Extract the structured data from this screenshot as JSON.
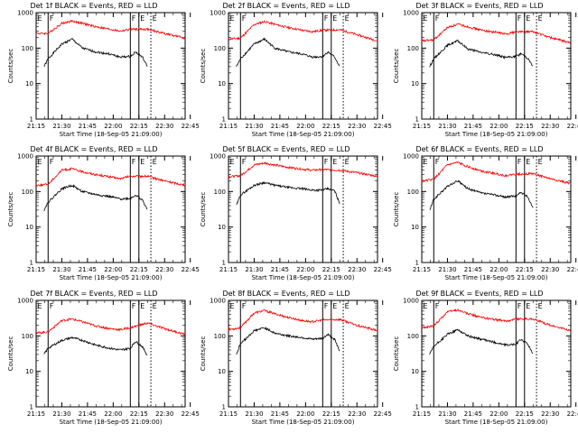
{
  "figure": {
    "panels": [
      {
        "title": "Det 1f BLACK = Events, RED = LLD"
      },
      {
        "title": "Det 2f BLACK = Events, RED = LLD"
      },
      {
        "title": "Det 3f BLACK = Events, RED = LLD"
      },
      {
        "title": "Det 4f BLACK = Events, RED = LLD"
      },
      {
        "title": "Det 5f BLACK = Events, RED = LLD"
      },
      {
        "title": "Det 6f BLACK = Events, RED = LLD"
      },
      {
        "title": "Det 7f BLACK = Events, RED = LLD"
      },
      {
        "title": "Det 8f BLACK = Events, RED = LLD"
      },
      {
        "title": "Det 9f BLACK = Events, RED = LLD"
      }
    ]
  },
  "chart_data": [
    {
      "type": "line",
      "title": "Det 1f BLACK = Events, RED = LLD",
      "xlabel": "Start Time (18-Sep-05 21:09:00)",
      "ylabel": "Counts/sec",
      "xlim": [
        15,
        102
      ],
      "ylim": [
        1,
        1000
      ],
      "yscale": "log",
      "x_ticks": [
        "21:15",
        "21:30",
        "21:45",
        "22:00",
        "22:15",
        "22:30",
        "22:45"
      ],
      "y_ticks": [
        "1",
        "10",
        "100",
        "1000"
      ],
      "markers": [
        {
          "label": "E",
          "x": 15,
          "style": "solid"
        },
        {
          "label": "F",
          "x": 22,
          "style": "solid"
        },
        {
          "label": "F",
          "x": 70,
          "style": "solid"
        },
        {
          "label": "E",
          "x": 75,
          "style": "solid"
        },
        {
          "label": "E",
          "x": 82,
          "style": "dotted"
        }
      ],
      "series": [
        {
          "name": "BLACK = Events",
          "color": "#000000",
          "x": [
            19.6,
            22,
            30,
            36,
            42,
            50,
            58,
            64,
            70,
            73,
            77,
            80
          ],
          "y": [
            30,
            50,
            130,
            180,
            100,
            78,
            68,
            56,
            58,
            78,
            56,
            30
          ]
        },
        {
          "name": "RED = LLD",
          "color": "#ff0000",
          "x": [
            15,
            22,
            30,
            36,
            42,
            50,
            58,
            64,
            70,
            80,
            90,
            102
          ],
          "y": [
            260,
            260,
            500,
            580,
            500,
            400,
            340,
            300,
            340,
            340,
            260,
            190
          ]
        }
      ]
    },
    {
      "type": "line",
      "title": "Det 2f BLACK = Events, RED = LLD",
      "xlabel": "Start Time (18-Sep-05 21:09:00)",
      "ylabel": "Counts/sec",
      "xlim": [
        15,
        102
      ],
      "ylim": [
        1,
        1000
      ],
      "yscale": "log",
      "x_ticks": [
        "21:15",
        "21:30",
        "21:45",
        "22:00",
        "22:15",
        "22:30",
        "22:45"
      ],
      "y_ticks": [
        "1",
        "10",
        "100",
        "1000"
      ],
      "markers": [
        {
          "label": "E",
          "x": 15,
          "style": "solid"
        },
        {
          "label": "F",
          "x": 22,
          "style": "solid"
        },
        {
          "label": "F",
          "x": 70,
          "style": "solid"
        },
        {
          "label": "E",
          "x": 75,
          "style": "solid"
        },
        {
          "label": "E",
          "x": 82,
          "style": "dotted"
        }
      ],
      "series": [
        {
          "name": "BLACK = Events",
          "color": "#000000",
          "x": [
            19.6,
            22,
            30,
            36,
            42,
            50,
            58,
            64,
            70,
            73,
            77,
            80
          ],
          "y": [
            30,
            50,
            130,
            180,
            100,
            78,
            68,
            56,
            58,
            78,
            56,
            30
          ]
        },
        {
          "name": "RED = LLD",
          "color": "#ff0000",
          "x": [
            15,
            22,
            30,
            36,
            42,
            50,
            58,
            64,
            70,
            80,
            90,
            102
          ],
          "y": [
            180,
            190,
            460,
            560,
            470,
            380,
            320,
            290,
            320,
            330,
            240,
            160
          ]
        }
      ]
    },
    {
      "type": "line",
      "title": "Det 3f BLACK = Events, RED = LLD",
      "xlabel": "Start Time (18-Sep-05 21:09:00)",
      "ylabel": "Counts/sec",
      "xlim": [
        15,
        102
      ],
      "ylim": [
        1,
        1000
      ],
      "yscale": "log",
      "x_ticks": [
        "21:15",
        "21:30",
        "21:45",
        "22:00",
        "22:15",
        "22:30",
        "22:45"
      ],
      "y_ticks": [
        "1",
        "10",
        "100",
        "1000"
      ],
      "markers": [
        {
          "label": "E",
          "x": 15,
          "style": "solid"
        },
        {
          "label": "F",
          "x": 22,
          "style": "solid"
        },
        {
          "label": "F",
          "x": 70,
          "style": "solid"
        },
        {
          "label": "E",
          "x": 75,
          "style": "solid"
        },
        {
          "label": "E",
          "x": 82,
          "style": "dotted"
        }
      ],
      "series": [
        {
          "name": "BLACK = Events",
          "color": "#000000",
          "x": [
            19.6,
            22,
            30,
            36,
            42,
            50,
            58,
            64,
            70,
            73,
            77,
            80
          ],
          "y": [
            30,
            50,
            120,
            160,
            95,
            75,
            65,
            55,
            58,
            70,
            52,
            30
          ]
        },
        {
          "name": "RED = LLD",
          "color": "#ff0000",
          "x": [
            15,
            22,
            30,
            36,
            42,
            50,
            58,
            64,
            70,
            80,
            90,
            102
          ],
          "y": [
            160,
            170,
            380,
            470,
            400,
            320,
            280,
            250,
            290,
            290,
            200,
            140
          ]
        }
      ]
    },
    {
      "type": "line",
      "title": "Det 4f BLACK = Events, RED = LLD",
      "xlabel": "Start Time (18-Sep-05 21:09:00)",
      "ylabel": "Counts/sec",
      "xlim": [
        15,
        102
      ],
      "ylim": [
        1,
        1000
      ],
      "yscale": "log",
      "x_ticks": [
        "21:15",
        "21:30",
        "21:45",
        "22:00",
        "22:15",
        "22:30",
        "22:45"
      ],
      "y_ticks": [
        "1",
        "10",
        "100",
        "1000"
      ],
      "markers": [
        {
          "label": "E",
          "x": 15,
          "style": "solid"
        },
        {
          "label": "F",
          "x": 22,
          "style": "solid"
        },
        {
          "label": "F",
          "x": 70,
          "style": "solid"
        },
        {
          "label": "E",
          "x": 75,
          "style": "solid"
        },
        {
          "label": "E",
          "x": 82,
          "style": "dotted"
        }
      ],
      "series": [
        {
          "name": "BLACK = Events",
          "color": "#000000",
          "x": [
            19.6,
            22,
            30,
            36,
            42,
            50,
            58,
            64,
            70,
            73,
            77,
            80
          ],
          "y": [
            30,
            50,
            120,
            150,
            100,
            82,
            72,
            62,
            64,
            80,
            58,
            30
          ]
        },
        {
          "name": "RED = LLD",
          "color": "#ff0000",
          "x": [
            15,
            22,
            30,
            36,
            42,
            50,
            58,
            64,
            70,
            80,
            90,
            102
          ],
          "y": [
            150,
            160,
            400,
            440,
            360,
            300,
            260,
            230,
            270,
            270,
            200,
            150
          ]
        }
      ]
    },
    {
      "type": "line",
      "title": "Det 5f BLACK = Events, RED = LLD",
      "xlabel": "Start Time (18-Sep-05 21:09:00)",
      "ylabel": "Counts/sec",
      "xlim": [
        15,
        102
      ],
      "ylim": [
        1,
        1000
      ],
      "yscale": "log",
      "x_ticks": [
        "21:15",
        "21:30",
        "21:45",
        "22:00",
        "22:15",
        "22:30",
        "22:45"
      ],
      "y_ticks": [
        "1",
        "10",
        "100",
        "1000"
      ],
      "markers": [
        {
          "label": "E",
          "x": 15,
          "style": "solid"
        },
        {
          "label": "F",
          "x": 22,
          "style": "solid"
        },
        {
          "label": "F",
          "x": 70,
          "style": "solid"
        },
        {
          "label": "E",
          "x": 75,
          "style": "solid"
        },
        {
          "label": "E",
          "x": 82,
          "style": "dotted"
        }
      ],
      "series": [
        {
          "name": "BLACK = Events",
          "color": "#000000",
          "x": [
            19.6,
            22,
            30,
            36,
            42,
            50,
            58,
            64,
            70,
            73,
            77,
            80
          ],
          "y": [
            40,
            80,
            150,
            180,
            150,
            130,
            120,
            110,
            110,
            120,
            105,
            45
          ]
        },
        {
          "name": "RED = LLD",
          "color": "#ff0000",
          "x": [
            15,
            22,
            30,
            36,
            42,
            50,
            58,
            64,
            70,
            80,
            90,
            102
          ],
          "y": [
            260,
            280,
            560,
            640,
            560,
            480,
            430,
            400,
            420,
            400,
            340,
            270
          ]
        }
      ]
    },
    {
      "type": "line",
      "title": "Det 6f BLACK = Events, RED = LLD",
      "xlabel": "Start Time (18-Sep-05 21:09:00)",
      "ylabel": "Counts/sec",
      "xlim": [
        15,
        102
      ],
      "ylim": [
        1,
        1000
      ],
      "yscale": "log",
      "x_ticks": [
        "21:15",
        "21:30",
        "21:45",
        "22:00",
        "22:15",
        "22:30",
        "22:45"
      ],
      "y_ticks": [
        "1",
        "10",
        "100",
        "1000"
      ],
      "markers": [
        {
          "label": "E",
          "x": 15,
          "style": "solid"
        },
        {
          "label": "F",
          "x": 22,
          "style": "solid"
        },
        {
          "label": "F",
          "x": 70,
          "style": "solid"
        },
        {
          "label": "E",
          "x": 75,
          "style": "solid"
        },
        {
          "label": "E",
          "x": 82,
          "style": "dotted"
        }
      ],
      "series": [
        {
          "name": "BLACK = Events",
          "color": "#000000",
          "x": [
            19.6,
            22,
            30,
            36,
            42,
            50,
            58,
            64,
            70,
            73,
            77,
            80
          ],
          "y": [
            30,
            60,
            140,
            200,
            120,
            90,
            80,
            70,
            75,
            95,
            70,
            35
          ]
        },
        {
          "name": "RED = LLD",
          "color": "#ff0000",
          "x": [
            15,
            22,
            30,
            36,
            42,
            50,
            58,
            64,
            70,
            80,
            90,
            102
          ],
          "y": [
            200,
            220,
            560,
            660,
            500,
            380,
            320,
            280,
            310,
            320,
            230,
            170
          ]
        }
      ]
    },
    {
      "type": "line",
      "title": "Det 7f BLACK = Events, RED = LLD",
      "xlabel": "Start Time (18-Sep-05 21:09:00)",
      "ylabel": "Counts/sec",
      "xlim": [
        15,
        102
      ],
      "ylim": [
        1,
        1000
      ],
      "yscale": "log",
      "x_ticks": [
        "21:15",
        "21:30",
        "21:45",
        "22:00",
        "22:15",
        "22:30",
        "22:45"
      ],
      "y_ticks": [
        "1",
        "10",
        "100",
        "1000"
      ],
      "markers": [
        {
          "label": "E",
          "x": 15,
          "style": "solid"
        },
        {
          "label": "F",
          "x": 22,
          "style": "solid"
        },
        {
          "label": "F",
          "x": 70,
          "style": "solid"
        },
        {
          "label": "E",
          "x": 75,
          "style": "solid"
        },
        {
          "label": "E",
          "x": 82,
          "style": "dotted"
        }
      ],
      "series": [
        {
          "name": "BLACK = Events",
          "color": "#000000",
          "x": [
            19.6,
            22,
            30,
            36,
            42,
            50,
            58,
            64,
            70,
            73,
            77,
            80
          ],
          "y": [
            30,
            45,
            75,
            90,
            75,
            55,
            45,
            40,
            45,
            70,
            50,
            28
          ]
        },
        {
          "name": "RED = LLD",
          "color": "#ff0000",
          "x": [
            15,
            22,
            30,
            36,
            42,
            50,
            58,
            64,
            70,
            80,
            90,
            102
          ],
          "y": [
            120,
            130,
            270,
            300,
            250,
            190,
            160,
            150,
            170,
            230,
            160,
            110
          ]
        }
      ]
    },
    {
      "type": "line",
      "title": "Det 8f BLACK = Events, RED = LLD",
      "xlabel": "Start Time (18-Sep-05 21:09:00)",
      "ylabel": "Counts/sec",
      "xlim": [
        15,
        102
      ],
      "ylim": [
        1,
        1000
      ],
      "yscale": "log",
      "x_ticks": [
        "21:15",
        "21:30",
        "21:45",
        "22:00",
        "22:15",
        "22:30",
        "22:45"
      ],
      "y_ticks": [
        "1",
        "10",
        "100",
        "1000"
      ],
      "markers": [
        {
          "label": "E",
          "x": 15,
          "style": "solid"
        },
        {
          "label": "F",
          "x": 22,
          "style": "solid"
        },
        {
          "label": "F",
          "x": 70,
          "style": "solid"
        },
        {
          "label": "E",
          "x": 75,
          "style": "solid"
        },
        {
          "label": "E",
          "x": 82,
          "style": "dotted"
        }
      ],
      "series": [
        {
          "name": "BLACK = Events",
          "color": "#000000",
          "x": [
            19.6,
            22,
            30,
            36,
            42,
            50,
            58,
            64,
            70,
            73,
            77,
            80
          ],
          "y": [
            30,
            60,
            140,
            170,
            120,
            100,
            90,
            80,
            85,
            110,
            80,
            35
          ]
        },
        {
          "name": "RED = LLD",
          "color": "#ff0000",
          "x": [
            15,
            22,
            30,
            36,
            42,
            50,
            58,
            64,
            70,
            80,
            90,
            102
          ],
          "y": [
            150,
            170,
            440,
            520,
            420,
            330,
            270,
            250,
            280,
            290,
            200,
            140
          ]
        }
      ]
    },
    {
      "type": "line",
      "title": "Det 9f BLACK = Events, RED = LLD",
      "xlabel": "Start Time (18-Sep-05 21:09:00)",
      "ylabel": "Counts/sec",
      "xlim": [
        15,
        102
      ],
      "ylim": [
        1,
        1000
      ],
      "yscale": "log",
      "x_ticks": [
        "21:15",
        "21:30",
        "21:45",
        "22:00",
        "22:15",
        "22:30",
        "22:45"
      ],
      "y_ticks": [
        "1",
        "10",
        "100",
        "1000"
      ],
      "markers": [
        {
          "label": "E",
          "x": 15,
          "style": "solid"
        },
        {
          "label": "F",
          "x": 22,
          "style": "solid"
        },
        {
          "label": "F",
          "x": 70,
          "style": "solid"
        },
        {
          "label": "E",
          "x": 75,
          "style": "solid"
        },
        {
          "label": "E",
          "x": 82,
          "style": "dotted"
        }
      ],
      "series": [
        {
          "name": "BLACK = Events",
          "color": "#000000",
          "x": [
            19.6,
            22,
            30,
            36,
            42,
            50,
            58,
            64,
            70,
            73,
            77,
            80
          ],
          "y": [
            30,
            50,
            110,
            150,
            100,
            80,
            65,
            55,
            58,
            80,
            58,
            30
          ]
        },
        {
          "name": "RED = LLD",
          "color": "#ff0000",
          "x": [
            15,
            22,
            30,
            36,
            42,
            50,
            58,
            64,
            70,
            80,
            90,
            102
          ],
          "y": [
            170,
            190,
            480,
            540,
            420,
            330,
            290,
            260,
            300,
            300,
            200,
            140
          ]
        }
      ]
    }
  ]
}
